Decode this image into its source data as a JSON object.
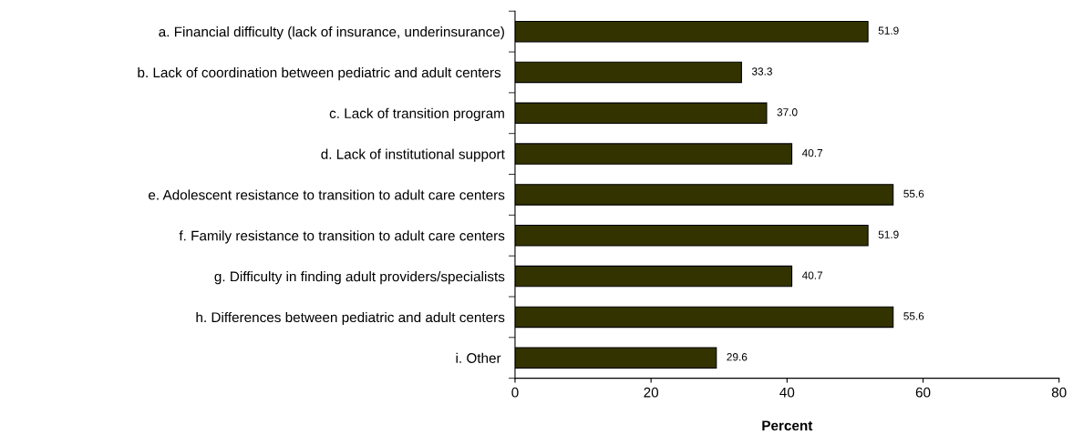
{
  "chart_data": {
    "type": "bar",
    "orientation": "horizontal",
    "xlabel": "Percent",
    "categories": [
      "a. Financial difficulty (lack of insurance, underinsurance)",
      "b. Lack of coordination between pediatric and adult centers ",
      "c. Lack of transition program",
      "d. Lack of institutional support",
      "e. Adolescent resistance to transition to adult care centers",
      "f. Family resistance to transition to adult care centers",
      "g. Difficulty in finding adult providers/specialists",
      "h. Differences between pediatric and adult centers",
      "i. Other "
    ],
    "values": [
      51.9,
      33.3,
      37.0,
      40.7,
      55.6,
      51.9,
      40.7,
      55.6,
      29.6
    ],
    "value_labels": [
      "51.9",
      "33.3",
      "37.0",
      "40.7",
      "55.6",
      "51.9",
      "40.7",
      "55.6",
      "29.6"
    ],
    "color": "#333300",
    "xlim": [
      0,
      80
    ],
    "xticks": [
      0,
      20,
      40,
      60,
      80
    ],
    "grid": false,
    "legend": false
  }
}
